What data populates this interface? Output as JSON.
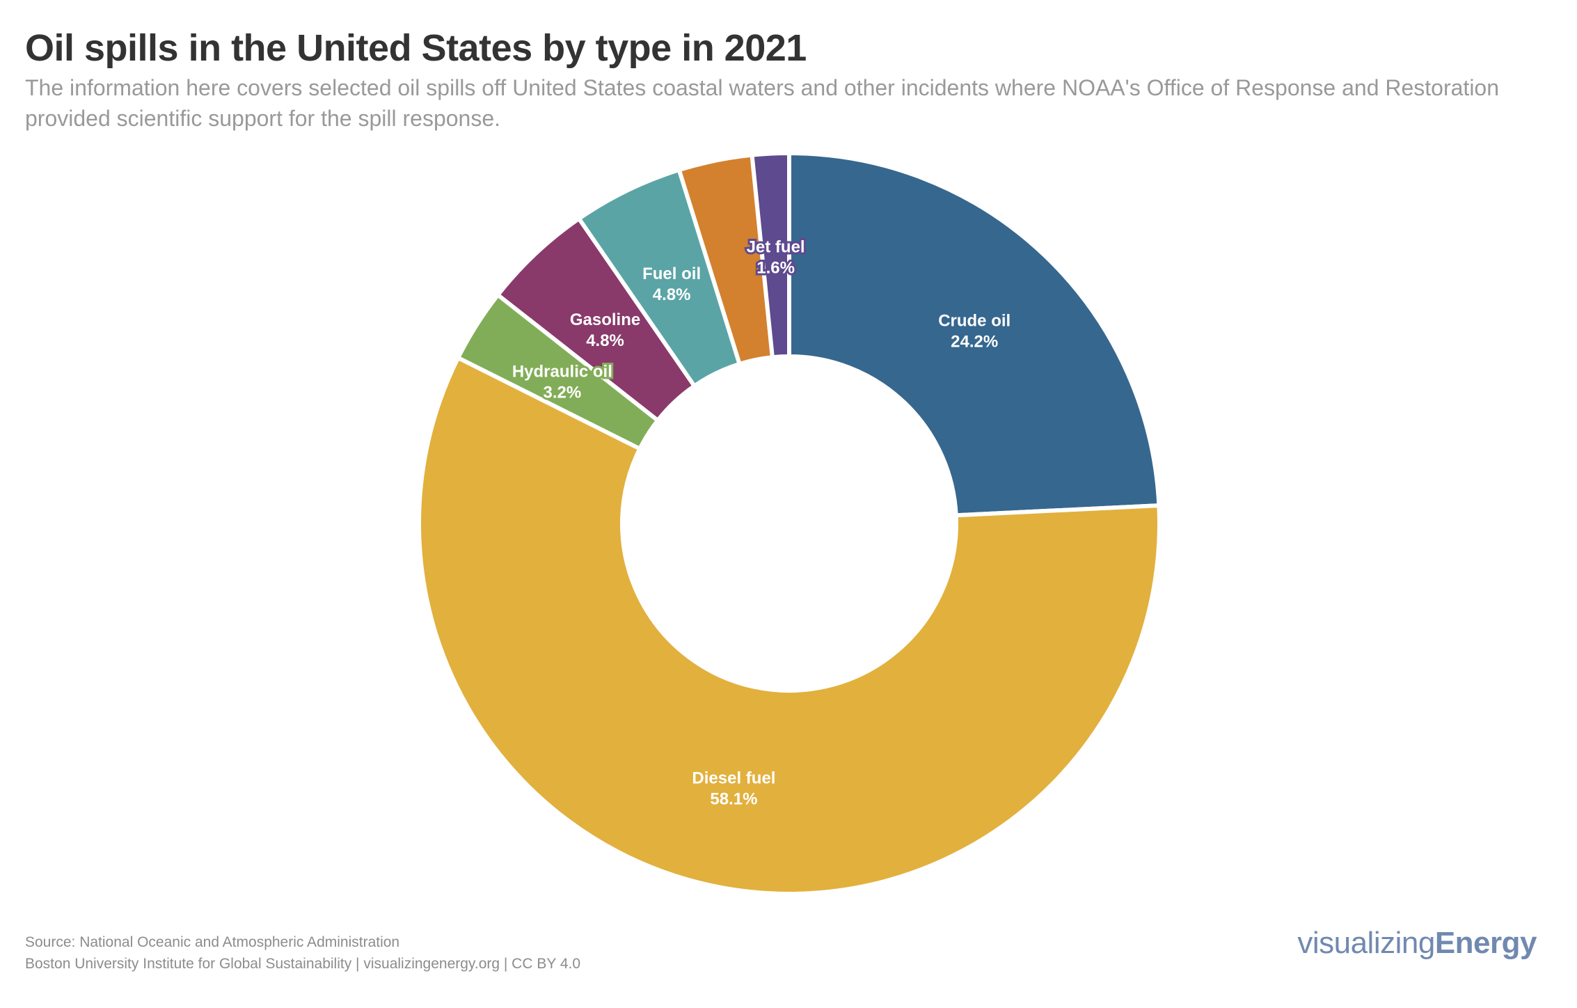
{
  "header": {
    "title": "Oil spills in the United States by type in 2021",
    "subtitle": "The information here covers selected oil spills off United States coastal waters and other incidents where NOAA's Office of Response and Restoration provided scientific support for the spill response."
  },
  "footer": {
    "source": "Source: National Oceanic and Atmospheric Administration",
    "credit": "Boston University Institute for Global Sustainability | visualizingenergy.org | CC BY 4.0"
  },
  "brand": {
    "light": "visualizing",
    "bold": "Energy"
  },
  "chart_data": {
    "type": "pie",
    "variant": "donut",
    "title": "Oil spills in the United States by type in 2021",
    "unit": "percent",
    "start": "12 o'clock, clockwise",
    "slices": [
      {
        "label": "Crude oil",
        "value": 24.2,
        "display": "24.2%",
        "color": "#36678f",
        "labeled": true
      },
      {
        "label": "Diesel fuel",
        "value": 58.1,
        "display": "58.1%",
        "color": "#e2b03d",
        "labeled": true
      },
      {
        "label": "Hydraulic oil",
        "value": 3.2,
        "display": "3.2%",
        "color": "#82ad58",
        "labeled": true
      },
      {
        "label": "Gasoline",
        "value": 4.8,
        "display": "4.8%",
        "color": "#893a6a",
        "labeled": true
      },
      {
        "label": "Fuel oil",
        "value": 4.8,
        "display": "4.8%",
        "color": "#5aa4a6",
        "labeled": true
      },
      {
        "label": "",
        "value": 3.2,
        "display": "",
        "color": "#d3812f",
        "labeled": false
      },
      {
        "label": "Jet fuel",
        "value": 1.6,
        "display": "1.6%",
        "color": "#5e4a8f",
        "labeled": true
      }
    ],
    "legend": "none"
  }
}
